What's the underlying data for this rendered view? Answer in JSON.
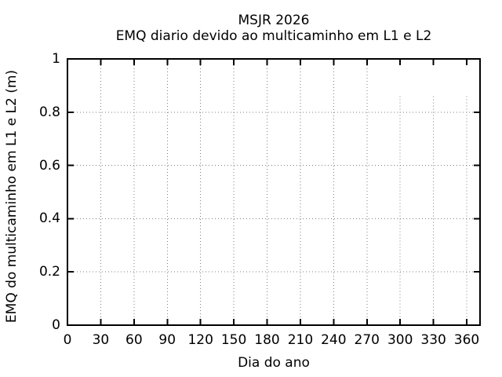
{
  "chart_data": {
    "type": "scatter",
    "title": "MSJR 2026",
    "subtitle": "EMQ diario devido ao multicaminho em L1 e L2",
    "xlabel": "Dia do ano",
    "ylabel": "EMQ do multicaminho em L1 e L2 (m)",
    "xlim": [
      0,
      372
    ],
    "ylim": [
      0,
      1
    ],
    "x_ticks": [
      0,
      30,
      60,
      90,
      120,
      150,
      180,
      210,
      240,
      270,
      300,
      330,
      360
    ],
    "y_ticks": [
      0,
      0.2,
      0.4,
      0.6,
      0.8,
      1
    ],
    "grid": "dotted",
    "legend": "none",
    "series": [],
    "clipped_vertical_gridlines": {
      "x_values": [
        300,
        330,
        360
      ],
      "start_y": 0.86
    }
  },
  "colors": {
    "background": "#ffffff",
    "axis": "#000000",
    "text": "#000000",
    "grid": "#7f7f7f"
  }
}
